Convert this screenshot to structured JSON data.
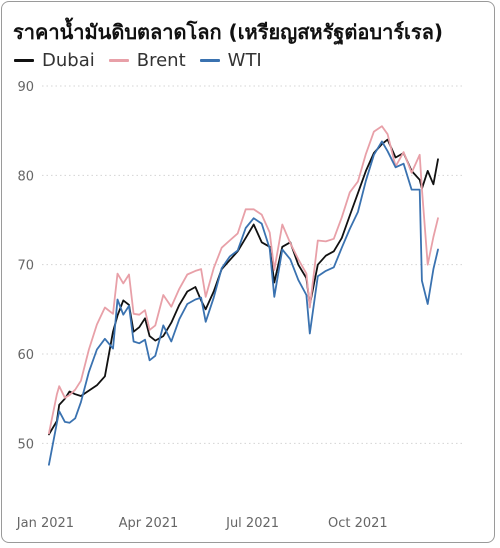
{
  "chart_data": {
    "type": "line",
    "title": "ราคาน้ำมันดิบตลาดโลก (เหรียญสหรัฐต่อบาร์เรล)",
    "xlabel": "",
    "ylabel": "",
    "ylim": [
      45,
      90
    ],
    "yticks": [
      50,
      60,
      70,
      80,
      90
    ],
    "xticks": [
      {
        "label": "Jan 2021",
        "date": "2021-01-01"
      },
      {
        "label": "Apr 2021",
        "date": "2021-04-01"
      },
      {
        "label": "Jul 2021",
        "date": "2021-07-01"
      },
      {
        "label": "Oct 2021",
        "date": "2021-10-01"
      }
    ],
    "xlim": [
      "2020-12-29",
      "2021-12-31"
    ],
    "grid": "horizontal dotted",
    "legend_position": "top-left",
    "series": [
      {
        "name": "Dubai",
        "color": "#111111",
        "points": [
          [
            "2021-01-04",
            51.0
          ],
          [
            "2021-01-11",
            52.5
          ],
          [
            "2021-01-13",
            54.3
          ],
          [
            "2021-01-18",
            55.0
          ],
          [
            "2021-01-22",
            55.8
          ],
          [
            "2021-01-27",
            55.5
          ],
          [
            "2021-02-01",
            55.3
          ],
          [
            "2021-02-08",
            55.9
          ],
          [
            "2021-02-15",
            56.5
          ],
          [
            "2021-02-22",
            57.5
          ],
          [
            "2021-03-01",
            62.5
          ],
          [
            "2021-03-05",
            64.3
          ],
          [
            "2021-03-10",
            66.0
          ],
          [
            "2021-03-15",
            65.5
          ],
          [
            "2021-03-19",
            62.5
          ],
          [
            "2021-03-24",
            63.0
          ],
          [
            "2021-03-29",
            64.0
          ],
          [
            "2021-04-02",
            62.0
          ],
          [
            "2021-04-07",
            61.5
          ],
          [
            "2021-04-14",
            62.0
          ],
          [
            "2021-04-21",
            63.5
          ],
          [
            "2021-04-28",
            65.5
          ],
          [
            "2021-05-05",
            67.0
          ],
          [
            "2021-05-12",
            67.5
          ],
          [
            "2021-05-17",
            66.0
          ],
          [
            "2021-05-21",
            65.0
          ],
          [
            "2021-05-28",
            67.0
          ],
          [
            "2021-06-04",
            69.5
          ],
          [
            "2021-06-11",
            70.5
          ],
          [
            "2021-06-18",
            71.5
          ],
          [
            "2021-06-25",
            73.0
          ],
          [
            "2021-07-02",
            74.5
          ],
          [
            "2021-07-09",
            72.5
          ],
          [
            "2021-07-16",
            72.0
          ],
          [
            "2021-07-20",
            68.0
          ],
          [
            "2021-07-27",
            72.0
          ],
          [
            "2021-08-03",
            72.5
          ],
          [
            "2021-08-10",
            70.0
          ],
          [
            "2021-08-17",
            68.5
          ],
          [
            "2021-08-20",
            65.5
          ],
          [
            "2021-08-27",
            70.0
          ],
          [
            "2021-09-03",
            71.0
          ],
          [
            "2021-09-10",
            71.5
          ],
          [
            "2021-09-17",
            73.0
          ],
          [
            "2021-09-24",
            75.5
          ],
          [
            "2021-10-01",
            78.0
          ],
          [
            "2021-10-08",
            80.5
          ],
          [
            "2021-10-15",
            82.5
          ],
          [
            "2021-10-22",
            83.5
          ],
          [
            "2021-10-27",
            84.0
          ],
          [
            "2021-11-03",
            82.0
          ],
          [
            "2021-11-10",
            82.5
          ],
          [
            "2021-11-17",
            80.5
          ],
          [
            "2021-11-24",
            79.5
          ],
          [
            "2021-11-26",
            78.5
          ],
          [
            "2021-12-01",
            80.5
          ],
          [
            "2021-12-06",
            79.0
          ],
          [
            "2021-12-10",
            81.8
          ]
        ]
      },
      {
        "name": "Brent",
        "color": "#e8a0a8",
        "points": [
          [
            "2021-01-04",
            51.1
          ],
          [
            "2021-01-11",
            55.5
          ],
          [
            "2021-01-13",
            56.4
          ],
          [
            "2021-01-18",
            55.1
          ],
          [
            "2021-01-22",
            55.4
          ],
          [
            "2021-01-27",
            56.0
          ],
          [
            "2021-02-01",
            57.0
          ],
          [
            "2021-02-08",
            60.5
          ],
          [
            "2021-02-15",
            63.3
          ],
          [
            "2021-02-22",
            65.2
          ],
          [
            "2021-03-01",
            64.5
          ],
          [
            "2021-03-05",
            69.0
          ],
          [
            "2021-03-10",
            67.9
          ],
          [
            "2021-03-15",
            68.9
          ],
          [
            "2021-03-19",
            64.5
          ],
          [
            "2021-03-24",
            64.4
          ],
          [
            "2021-03-29",
            64.9
          ],
          [
            "2021-04-02",
            62.7
          ],
          [
            "2021-04-07",
            63.2
          ],
          [
            "2021-04-14",
            66.6
          ],
          [
            "2021-04-21",
            65.3
          ],
          [
            "2021-04-28",
            67.3
          ],
          [
            "2021-05-05",
            68.9
          ],
          [
            "2021-05-12",
            69.3
          ],
          [
            "2021-05-17",
            69.5
          ],
          [
            "2021-05-21",
            66.4
          ],
          [
            "2021-05-28",
            69.6
          ],
          [
            "2021-06-04",
            71.9
          ],
          [
            "2021-06-11",
            72.7
          ],
          [
            "2021-06-18",
            73.5
          ],
          [
            "2021-06-25",
            76.2
          ],
          [
            "2021-07-02",
            76.2
          ],
          [
            "2021-07-09",
            75.6
          ],
          [
            "2021-07-16",
            73.6
          ],
          [
            "2021-07-20",
            69.4
          ],
          [
            "2021-07-27",
            74.5
          ],
          [
            "2021-08-03",
            72.4
          ],
          [
            "2021-08-10",
            70.6
          ],
          [
            "2021-08-17",
            69.0
          ],
          [
            "2021-08-20",
            65.2
          ],
          [
            "2021-08-27",
            72.7
          ],
          [
            "2021-09-03",
            72.6
          ],
          [
            "2021-09-10",
            72.9
          ],
          [
            "2021-09-17",
            75.3
          ],
          [
            "2021-09-24",
            78.1
          ],
          [
            "2021-10-01",
            79.3
          ],
          [
            "2021-10-08",
            82.4
          ],
          [
            "2021-10-15",
            84.9
          ],
          [
            "2021-10-22",
            85.5
          ],
          [
            "2021-10-27",
            84.6
          ],
          [
            "2021-11-03",
            81.0
          ],
          [
            "2021-11-10",
            82.6
          ],
          [
            "2021-11-17",
            80.3
          ],
          [
            "2021-11-24",
            82.3
          ],
          [
            "2021-11-26",
            78.5
          ],
          [
            "2021-12-01",
            70.0
          ],
          [
            "2021-12-06",
            73.1
          ],
          [
            "2021-12-10",
            75.2
          ]
        ]
      },
      {
        "name": "WTI",
        "color": "#3a72b0",
        "points": [
          [
            "2021-01-04",
            47.6
          ],
          [
            "2021-01-11",
            52.3
          ],
          [
            "2021-01-13",
            53.6
          ],
          [
            "2021-01-18",
            52.4
          ],
          [
            "2021-01-22",
            52.3
          ],
          [
            "2021-01-27",
            52.8
          ],
          [
            "2021-02-01",
            54.6
          ],
          [
            "2021-02-08",
            58.0
          ],
          [
            "2021-02-15",
            60.5
          ],
          [
            "2021-02-22",
            61.7
          ],
          [
            "2021-03-01",
            60.6
          ],
          [
            "2021-03-05",
            66.1
          ],
          [
            "2021-03-10",
            64.4
          ],
          [
            "2021-03-15",
            65.4
          ],
          [
            "2021-03-19",
            61.4
          ],
          [
            "2021-03-24",
            61.2
          ],
          [
            "2021-03-29",
            61.6
          ],
          [
            "2021-04-02",
            59.3
          ],
          [
            "2021-04-07",
            59.8
          ],
          [
            "2021-04-14",
            63.2
          ],
          [
            "2021-04-21",
            61.4
          ],
          [
            "2021-04-28",
            63.9
          ],
          [
            "2021-05-05",
            65.6
          ],
          [
            "2021-05-12",
            66.1
          ],
          [
            "2021-05-17",
            66.3
          ],
          [
            "2021-05-21",
            63.6
          ],
          [
            "2021-05-28",
            66.3
          ],
          [
            "2021-06-04",
            69.6
          ],
          [
            "2021-06-11",
            70.9
          ],
          [
            "2021-06-18",
            71.6
          ],
          [
            "2021-06-25",
            74.1
          ],
          [
            "2021-07-02",
            75.2
          ],
          [
            "2021-07-09",
            74.6
          ],
          [
            "2021-07-16",
            71.8
          ],
          [
            "2021-07-20",
            66.4
          ],
          [
            "2021-07-27",
            71.7
          ],
          [
            "2021-08-03",
            70.6
          ],
          [
            "2021-08-10",
            68.3
          ],
          [
            "2021-08-17",
            66.6
          ],
          [
            "2021-08-20",
            62.3
          ],
          [
            "2021-08-27",
            68.7
          ],
          [
            "2021-09-03",
            69.3
          ],
          [
            "2021-09-10",
            69.7
          ],
          [
            "2021-09-17",
            71.9
          ],
          [
            "2021-09-24",
            74.0
          ],
          [
            "2021-10-01",
            75.9
          ],
          [
            "2021-10-08",
            79.4
          ],
          [
            "2021-10-15",
            82.3
          ],
          [
            "2021-10-22",
            83.8
          ],
          [
            "2021-10-27",
            82.7
          ],
          [
            "2021-11-03",
            80.9
          ],
          [
            "2021-11-10",
            81.3
          ],
          [
            "2021-11-17",
            78.4
          ],
          [
            "2021-11-24",
            78.4
          ],
          [
            "2021-11-26",
            68.2
          ],
          [
            "2021-12-01",
            65.6
          ],
          [
            "2021-12-06",
            69.5
          ],
          [
            "2021-12-10",
            71.7
          ]
        ]
      }
    ]
  }
}
